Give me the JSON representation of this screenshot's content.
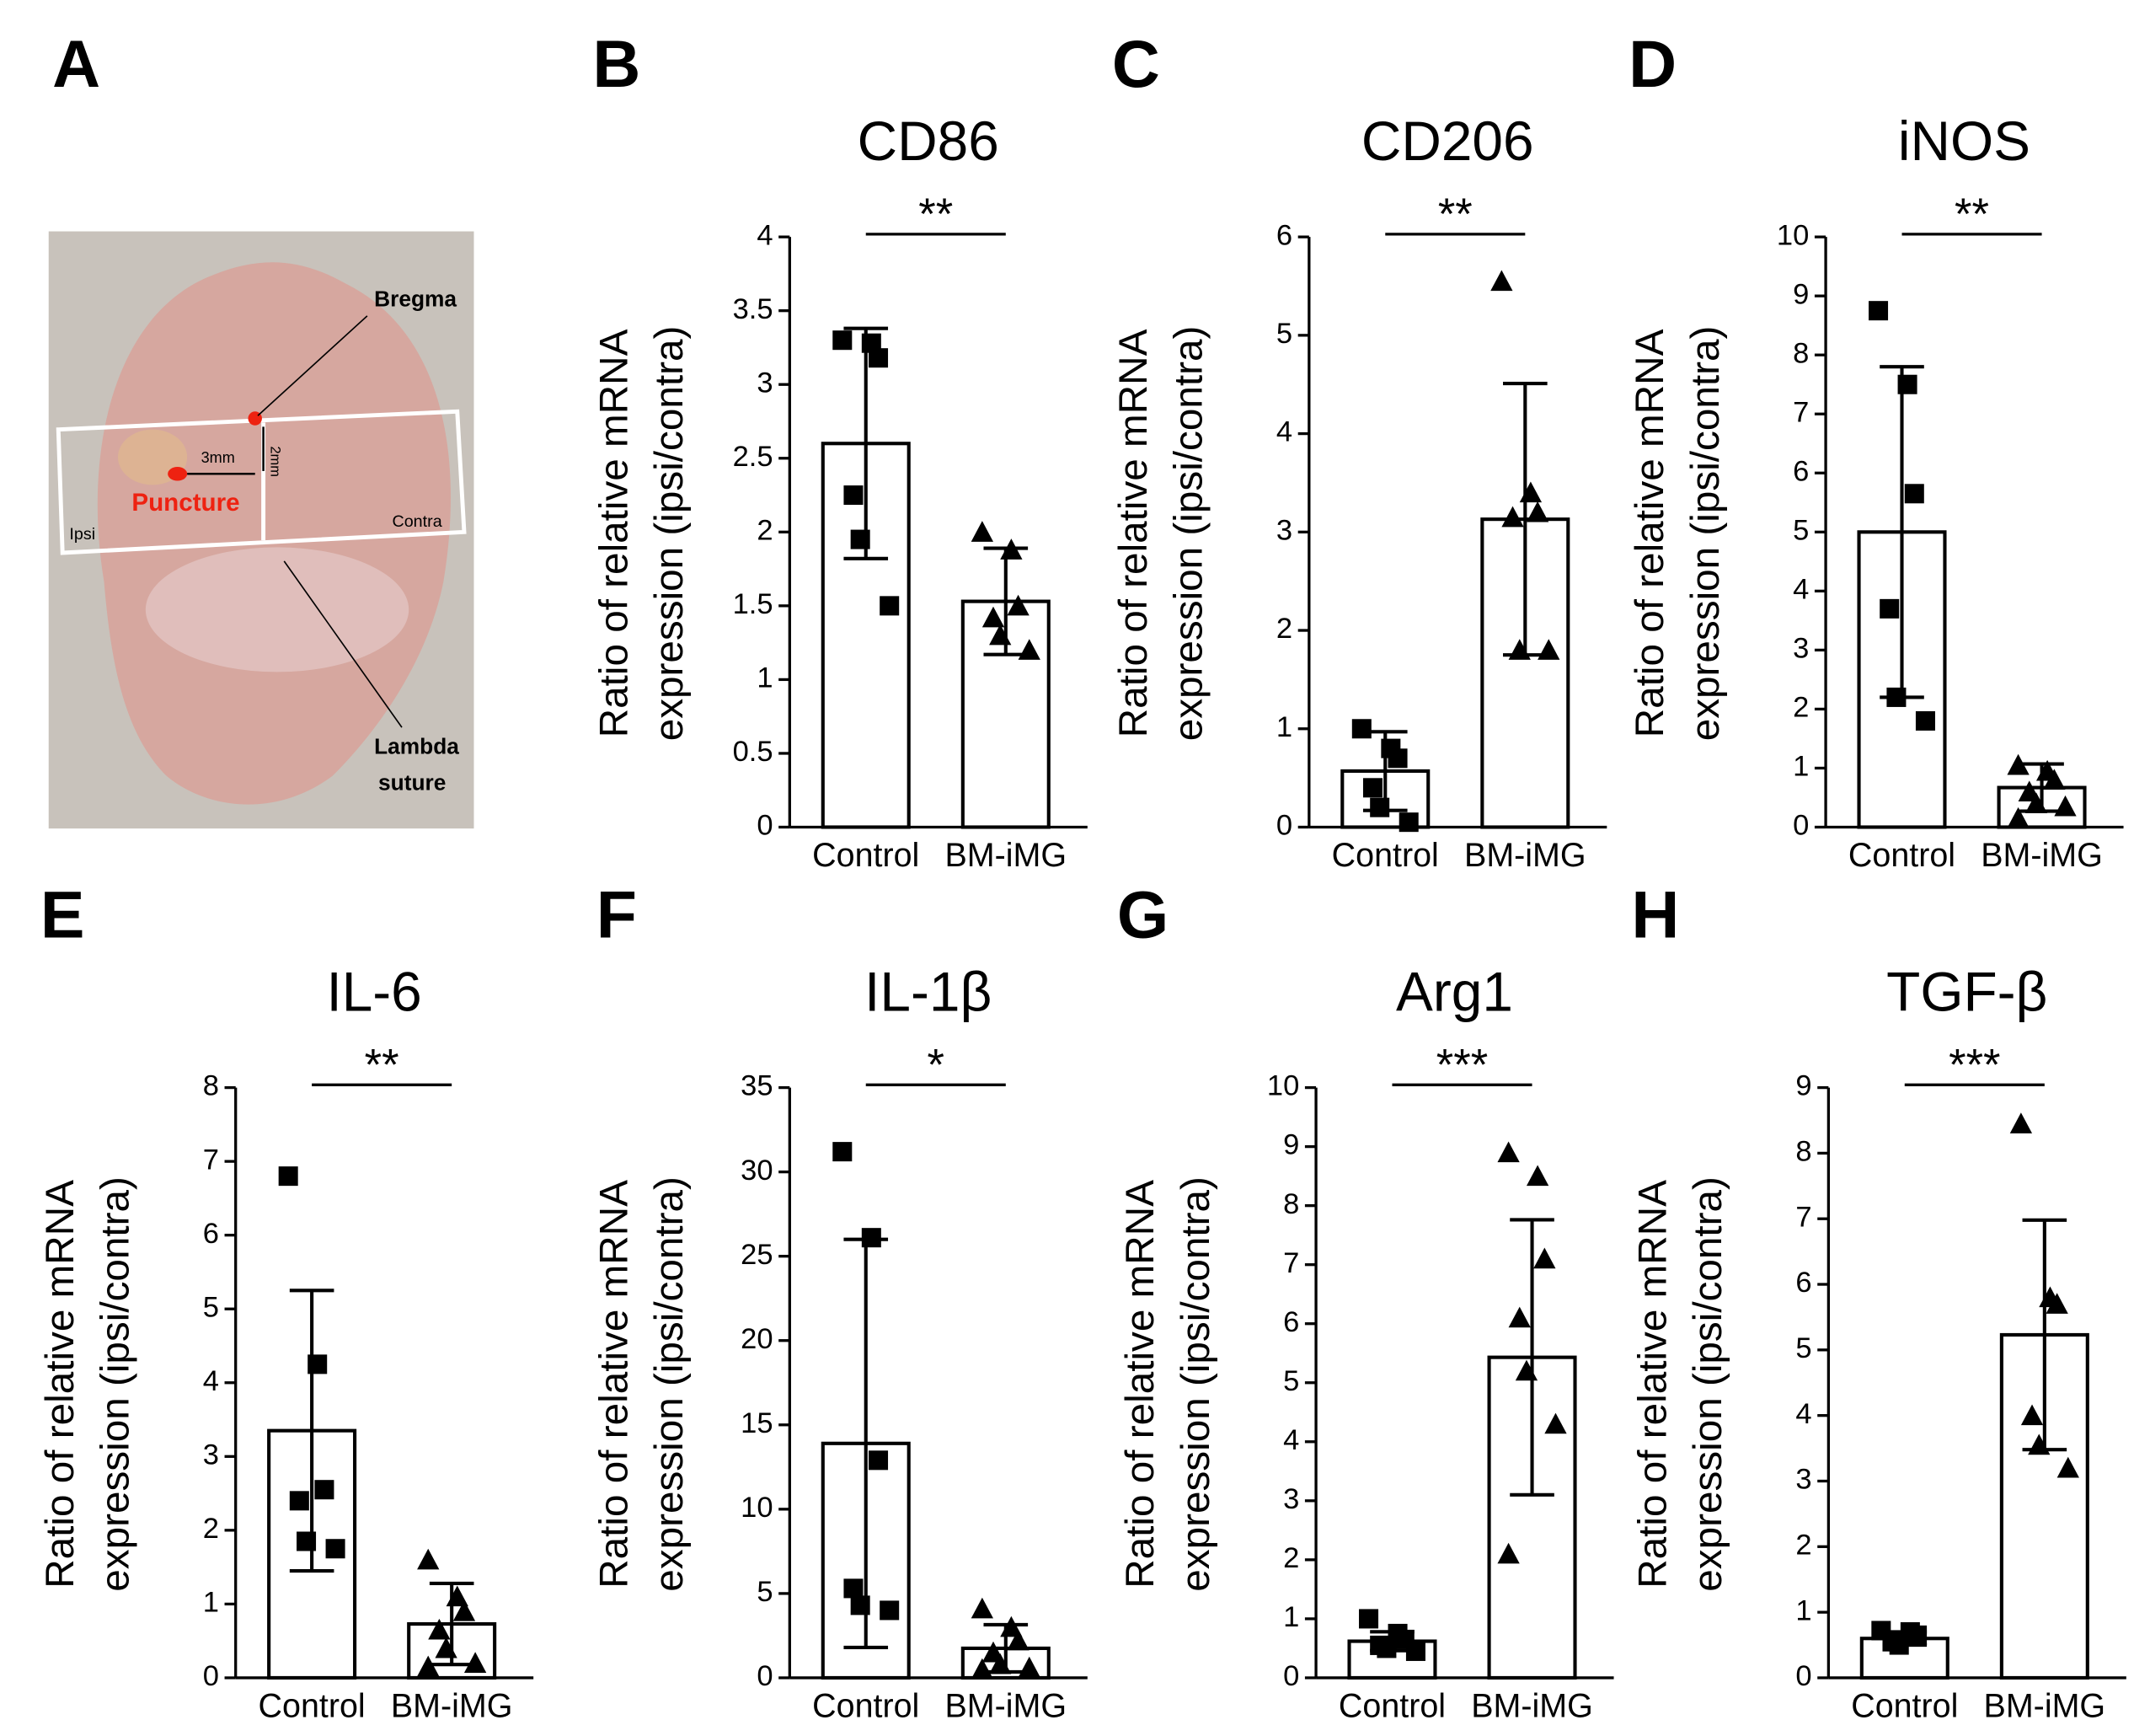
{
  "photo": {
    "panel": "A",
    "bregma": "Bregma",
    "horizontal": "3mm",
    "vertical": "2mm",
    "puncture": "Puncture",
    "ipsi": "Ipsi",
    "contra": "Contra",
    "lambda": [
      "Lambda",
      "suture"
    ]
  },
  "chart_data": [
    {
      "type": "bar",
      "panel": "B",
      "title": "CD86",
      "ylabel": [
        "Ratio of relative mRNA",
        "expression (ipsi/contra)"
      ],
      "categories": [
        "Control",
        "BM-iMG"
      ],
      "values": [
        2.6,
        1.53
      ],
      "errors": [
        0.78,
        0.36
      ],
      "points": [
        [
          3.3,
          3.28,
          3.18,
          2.25,
          1.95,
          1.5
        ],
        [
          2.0,
          1.88,
          1.5,
          1.42,
          1.3,
          1.2
        ]
      ],
      "markers": [
        "square",
        "triangle"
      ],
      "significance": "**",
      "ylim": [
        0,
        4
      ],
      "yticks": [
        0,
        0.5,
        1,
        1.5,
        2,
        2.5,
        3,
        3.5,
        4
      ]
    },
    {
      "type": "bar",
      "panel": "C",
      "title": "CD206",
      "ylabel": [
        "Ratio of relative mRNA",
        "expression (ipsi/contra)"
      ],
      "categories": [
        "Control",
        "BM-iMG"
      ],
      "values": [
        0.57,
        3.13
      ],
      "errors": [
        0.4,
        1.38
      ],
      "points": [
        [
          1.0,
          0.8,
          0.7,
          0.4,
          0.2,
          0.05
        ],
        [
          5.55,
          3.4,
          3.2,
          3.15,
          1.8,
          1.8
        ]
      ],
      "markers": [
        "square",
        "triangle"
      ],
      "significance": "**",
      "ylim": [
        0,
        6
      ],
      "yticks": [
        0,
        1,
        2,
        3,
        4,
        5,
        6
      ]
    },
    {
      "type": "bar",
      "panel": "D",
      "title": "iNOS",
      "ylabel": [
        "Ratio of relative mRNA",
        "expression (ipsi/contra)"
      ],
      "categories": [
        "Control",
        "BM-iMG"
      ],
      "values": [
        5.0,
        0.67
      ],
      "errors": [
        2.8,
        0.4
      ],
      "points": [
        [
          8.75,
          7.5,
          5.65,
          3.7,
          2.2,
          1.8
        ],
        [
          1.05,
          0.95,
          0.8,
          0.6,
          0.4,
          0.35,
          0.15
        ]
      ],
      "markers": [
        "square",
        "triangle"
      ],
      "significance": "**",
      "ylim": [
        0,
        10
      ],
      "yticks": [
        0,
        1,
        2,
        3,
        4,
        5,
        6,
        7,
        8,
        9,
        10
      ]
    },
    {
      "type": "bar",
      "panel": "E",
      "title": "IL-6",
      "ylabel": [
        "Ratio of relative mRNA",
        "expression (ipsi/contra)"
      ],
      "categories": [
        "Control",
        "BM-iMG"
      ],
      "values": [
        3.35,
        0.73
      ],
      "errors": [
        1.9,
        0.55
      ],
      "points": [
        [
          6.8,
          4.25,
          2.55,
          2.4,
          1.85,
          1.75
        ],
        [
          1.6,
          1.1,
          0.9,
          0.65,
          0.4,
          0.2,
          0.15
        ]
      ],
      "markers": [
        "square",
        "triangle"
      ],
      "significance": "**",
      "ylim": [
        0,
        8
      ],
      "yticks": [
        0,
        1,
        2,
        3,
        4,
        5,
        6,
        7,
        8
      ]
    },
    {
      "type": "bar",
      "panel": "F",
      "title": "IL-1β",
      "ylabel": [
        "Ratio of relative mRNA",
        "expression (ipsi/contra)"
      ],
      "categories": [
        "Control",
        "BM-iMG"
      ],
      "values": [
        13.9,
        1.75
      ],
      "errors": [
        12.1,
        1.4
      ],
      "points": [
        [
          31.2,
          26.1,
          12.9,
          5.3,
          4.3,
          4.0
        ],
        [
          4.1,
          3.0,
          2.2,
          1.5,
          0.8,
          0.6,
          0.5
        ]
      ],
      "markers": [
        "square",
        "triangle"
      ],
      "significance": "*",
      "ylim": [
        0,
        35
      ],
      "yticks": [
        0,
        5,
        10,
        15,
        20,
        25,
        30,
        35
      ]
    },
    {
      "type": "bar",
      "panel": "G",
      "title": "Arg1",
      "ylabel": [
        "Ratio of relative mRNA",
        "expression (ipsi/contra)"
      ],
      "categories": [
        "Control",
        "BM-iMG"
      ],
      "values": [
        0.62,
        5.43
      ],
      "errors": [
        0.16,
        2.33
      ],
      "points": [
        [
          1.0,
          0.75,
          0.65,
          0.55,
          0.5,
          0.45
        ],
        [
          8.9,
          8.5,
          7.1,
          6.1,
          5.2,
          4.3,
          2.1
        ]
      ],
      "markers": [
        "square",
        "triangle"
      ],
      "significance": "***",
      "ylim": [
        0,
        10
      ],
      "yticks": [
        0,
        1,
        2,
        3,
        4,
        5,
        6,
        7,
        8,
        9,
        10
      ]
    },
    {
      "type": "bar",
      "panel": "H",
      "title": "TGF-β",
      "ylabel": [
        "Ratio of relative mRNA",
        "expression (ipsi/contra)"
      ],
      "categories": [
        "Control",
        "BM-iMG"
      ],
      "values": [
        0.6,
        5.23
      ],
      "errors": [
        0.1,
        1.75
      ],
      "points": [
        [
          0.72,
          0.7,
          0.65,
          0.55,
          0.5
        ],
        [
          8.45,
          5.8,
          5.7,
          4.0,
          3.55,
          3.2
        ]
      ],
      "markers": [
        "square",
        "triangle"
      ],
      "significance": "***",
      "ylim": [
        0,
        9
      ],
      "yticks": [
        0,
        1,
        2,
        3,
        4,
        5,
        6,
        7,
        8,
        9
      ]
    }
  ]
}
